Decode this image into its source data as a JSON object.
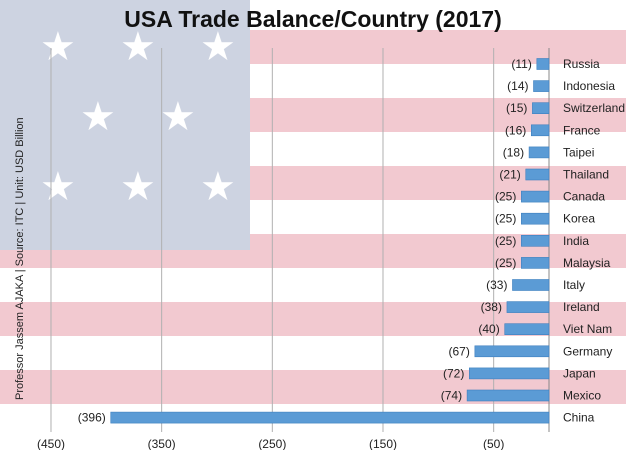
{
  "chart_data": {
    "type": "bar",
    "orientation": "horizontal",
    "title": "USA Trade Balance/Country (2017)",
    "side_note": "Professor Jassem AJAKA | Source: ITC | Unit: USD Billion",
    "categories": [
      "Russia",
      "Indonesia",
      "Switzerland",
      "France",
      "Taipei",
      "Thailand",
      "Canada",
      "Korea",
      "India",
      "Malaysia",
      "Italy",
      "Ireland",
      "Viet Nam",
      "Germany",
      "Japan",
      "Mexico",
      "China"
    ],
    "values": [
      -11,
      -14,
      -15,
      -16,
      -18,
      -21,
      -25,
      -25,
      -25,
      -25,
      -33,
      -38,
      -40,
      -67,
      -72,
      -74,
      -396
    ],
    "value_labels": [
      "(11)",
      "(14)",
      "(15)",
      "(16)",
      "(18)",
      "(21)",
      "(25)",
      "(25)",
      "(25)",
      "(25)",
      "(33)",
      "(38)",
      "(40)",
      "(67)",
      "(72)",
      "(74)",
      "(396)"
    ],
    "x_ticks": [
      -450,
      -350,
      -250,
      -150,
      -50
    ],
    "x_tick_labels": [
      "(450)",
      "(350)",
      "(250)",
      "(150)",
      "(50)"
    ],
    "xlim": [
      -450,
      0
    ],
    "grid": true,
    "bar_color": "#5b9bd5"
  }
}
